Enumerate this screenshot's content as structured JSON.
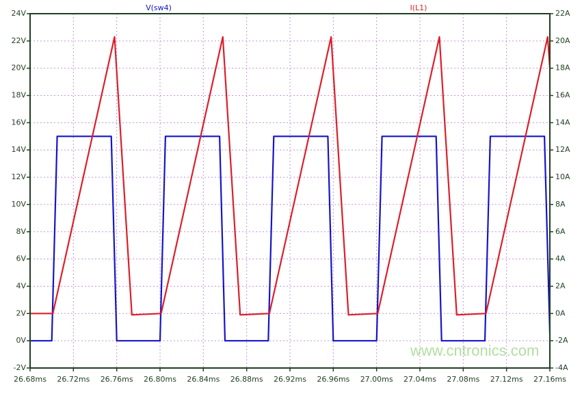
{
  "chart_data": {
    "type": "line",
    "x_unit": "ms",
    "xlim": [
      26.68,
      27.16
    ],
    "x_ticks": [
      "26.68ms",
      "26.72ms",
      "26.76ms",
      "26.80ms",
      "26.84ms",
      "26.88ms",
      "26.92ms",
      "26.96ms",
      "27.00ms",
      "27.04ms",
      "27.08ms",
      "27.12ms",
      "27.16ms"
    ],
    "x_tick_values": [
      26.68,
      26.72,
      26.76,
      26.8,
      26.84,
      26.88,
      26.92,
      26.96,
      27.0,
      27.04,
      27.08,
      27.12,
      27.16
    ],
    "ylim_left": [
      -2,
      24
    ],
    "y_ticks_left": [
      "-2V",
      "0V",
      "2V",
      "4V",
      "6V",
      "8V",
      "10V",
      "12V",
      "14V",
      "16V",
      "18V",
      "20V",
      "22V",
      "24V"
    ],
    "y_tick_values_left": [
      -2,
      0,
      2,
      4,
      6,
      8,
      10,
      12,
      14,
      16,
      18,
      20,
      22,
      24
    ],
    "ylim_right": [
      -4,
      22
    ],
    "y_ticks_right": [
      "-4A",
      "-2A",
      "0A",
      "2A",
      "4A",
      "6A",
      "8A",
      "10A",
      "12A",
      "14A",
      "16A",
      "18A",
      "20A",
      "22A"
    ],
    "y_tick_values_right": [
      -4,
      -2,
      0,
      2,
      4,
      6,
      8,
      10,
      12,
      14,
      16,
      18,
      20,
      22
    ],
    "grid": true,
    "series": [
      {
        "name": "V(sw4)",
        "axis": "left",
        "color": "#1414c8",
        "points": [
          [
            26.68,
            0
          ],
          [
            26.7,
            0
          ],
          [
            26.705,
            15
          ],
          [
            26.755,
            15
          ],
          [
            26.76,
            0
          ],
          [
            26.8,
            0
          ],
          [
            26.805,
            15
          ],
          [
            26.855,
            15
          ],
          [
            26.86,
            0
          ],
          [
            26.9,
            0
          ],
          [
            26.905,
            15
          ],
          [
            26.955,
            15
          ],
          [
            26.96,
            0
          ],
          [
            27.0,
            0
          ],
          [
            27.005,
            15
          ],
          [
            27.055,
            15
          ],
          [
            27.06,
            0
          ],
          [
            27.1,
            0
          ],
          [
            27.105,
            15
          ],
          [
            27.155,
            15
          ],
          [
            27.16,
            0.5
          ]
        ]
      },
      {
        "name": "I(L1)",
        "axis": "right",
        "color": "#dc1e28",
        "points": [
          [
            26.68,
            0
          ],
          [
            26.701,
            0
          ],
          [
            26.758,
            20.3
          ],
          [
            26.774,
            -0.1
          ],
          [
            26.801,
            0
          ],
          [
            26.858,
            20.3
          ],
          [
            26.874,
            -0.1
          ],
          [
            26.901,
            0
          ],
          [
            26.958,
            20.3
          ],
          [
            26.974,
            -0.1
          ],
          [
            27.001,
            0
          ],
          [
            27.058,
            20.3
          ],
          [
            27.074,
            -0.1
          ],
          [
            27.101,
            0
          ],
          [
            27.158,
            20.3
          ],
          [
            27.16,
            18
          ]
        ]
      }
    ]
  },
  "watermark": "www.cntronics.com"
}
